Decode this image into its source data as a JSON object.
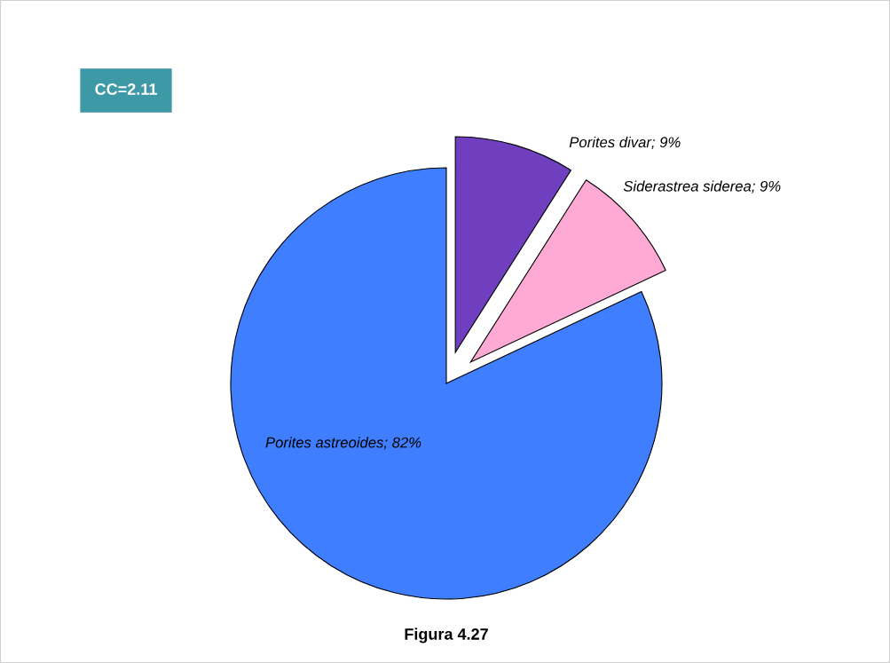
{
  "chart_data": {
    "type": "pie",
    "categories": [
      "Porites divar",
      "Siderastrea siderea",
      "Porites astreoides"
    ],
    "values": [
      9,
      9,
      82
    ],
    "colors": [
      "#6f3fbf",
      "#ffaad4",
      "#3f7fff"
    ],
    "value_labels": [
      "9%",
      "9%",
      "82%"
    ],
    "legend": false,
    "annotations": [
      "CC=2.11",
      "Figura 4.27"
    ]
  }
}
